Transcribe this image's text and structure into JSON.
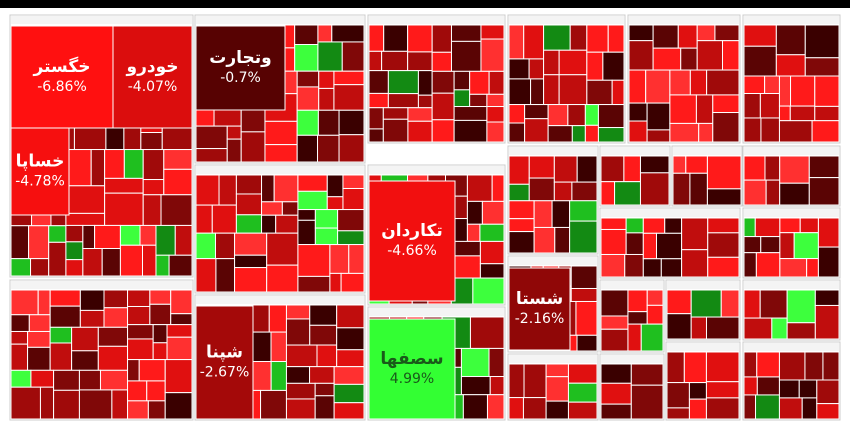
{
  "chart_data": {
    "type": "treemap",
    "categories": [
      "خگستر",
      "خودرو",
      "خساپا",
      "وتجارت",
      "تکاردان",
      "شستا",
      "شپنا",
      "سصفها"
    ],
    "values": [
      -6.86,
      -4.07,
      -4.78,
      -0.7,
      -4.66,
      -2.16,
      -2.67,
      4.99
    ],
    "value_labels": [
      "-6.86%",
      "-4.07%",
      "-4.78%",
      "-0.7%",
      "-4.66%",
      "-2.16%",
      "-2.67%",
      "4.99%"
    ],
    "colors": {
      "negative": "#ff1010",
      "positive": "#33ff33"
    }
  }
}
